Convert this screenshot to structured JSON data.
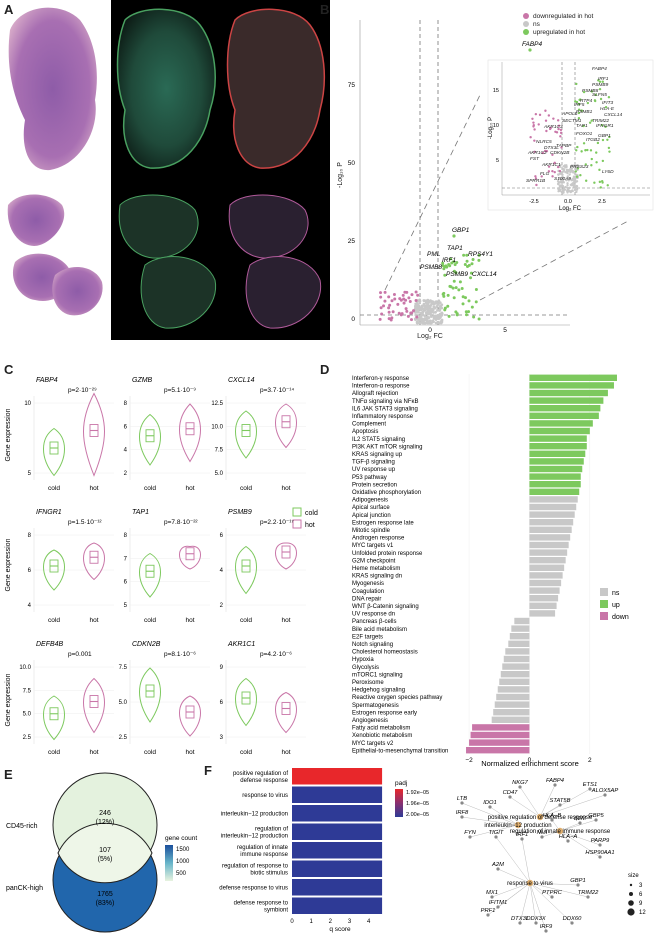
{
  "panel_labels": [
    "A",
    "B",
    "C",
    "D",
    "E",
    "F"
  ],
  "legend_b": {
    "down": "downregulated in hot",
    "ns": "ns",
    "up": "upregulated in hot"
  },
  "colors": {
    "up": "#7dc95e",
    "down": "#c976a8",
    "ns": "#c8c8c8",
    "cold": "#7dc95e",
    "hot": "#c976a8",
    "venn_top": "#e3f1dc",
    "venn_bottom": "#2166ac",
    "bar_red": "#e8272b",
    "bar_blue": "#2e3a96"
  },
  "panel_b": {
    "xlabel": "Log₂ FC",
    "ylabel": "-Log₁₀ P",
    "ticks_y": [
      "0",
      "25",
      "50",
      "75"
    ],
    "ticks_x": [
      "0",
      "5"
    ],
    "main_labels": [
      "FABP4",
      "GBP1",
      "TAP1",
      "PML",
      "IRF1",
      "RPS4Y1",
      "PSMB8",
      "PSMB9",
      "CXCL14"
    ],
    "inset_labels": [
      "FABP4",
      "IRF1",
      "PSMB9",
      "PSMB8",
      "SLFN5",
      "RTP4",
      "IRF5",
      "IFIT3",
      "HLA-E",
      "CXCL14",
      "TRIM22",
      "IFNGR1",
      "PSMB1",
      "APOL6",
      "AKR1C3",
      "SECTM1",
      "TAP1",
      "GBP1",
      "FOXO1",
      "ITGB2",
      "NLRC5",
      "DTX3L",
      "TAPBP",
      "CDKN2B",
      "FST",
      "AKR1C2",
      "AKR1C1",
      "PRSS23",
      "LY6D",
      "FLG",
      "SPRR1B",
      "S100A9"
    ],
    "inset_ticks_x": [
      "-2.5",
      "0.0",
      "2.5"
    ],
    "inset_ticks_y": [
      "5",
      "10",
      "15"
    ]
  },
  "panel_c": {
    "ylabel": "Gene expression",
    "legend": [
      {
        "name": "cold",
        "color": "#7dc95e"
      },
      {
        "name": "hot",
        "color": "#c976a8"
      }
    ],
    "genes": [
      {
        "name": "FABP4",
        "p": "p=2·10⁻²⁹",
        "ticks": [
          "5",
          "10"
        ]
      },
      {
        "name": "GZMB",
        "p": "p=5.1·10⁻⁹",
        "ticks": [
          "2",
          "4",
          "6",
          "8"
        ]
      },
      {
        "name": "CXCL14",
        "p": "p=3.7·10⁻¹⁴",
        "ticks": [
          "5.0",
          "7.5",
          "10.0",
          "12.5"
        ]
      },
      {
        "name": "IFNGR1",
        "p": "p=1.5·10⁻¹²",
        "ticks": [
          "4",
          "6",
          "8"
        ]
      },
      {
        "name": "TAP1",
        "p": "p=7.8·10⁻²²",
        "ticks": [
          "5",
          "6",
          "7",
          "8"
        ]
      },
      {
        "name": "PSMB9",
        "p": "p=2.2·10⁻¹⁷",
        "ticks": [
          "2",
          "4",
          "6"
        ]
      },
      {
        "name": "DEFB4B",
        "p": "p=0.001",
        "ticks": [
          "2.5",
          "5.0",
          "7.5",
          "10.0"
        ]
      },
      {
        "name": "CDKN2B",
        "p": "p=8.1·10⁻⁶",
        "ticks": [
          "2.5",
          "5.0",
          "7.5"
        ]
      },
      {
        "name": "AKR1C1",
        "p": "p=4.2·10⁻⁶",
        "ticks": [
          "3",
          "6",
          "9"
        ]
      }
    ],
    "xcats": [
      "cold",
      "hot"
    ]
  },
  "panel_e": {
    "top_label": "CD45-rich",
    "bottom_label": "panCK-high",
    "top_count": "246",
    "top_pct": "(12%)",
    "mid_count": "107",
    "mid_pct": "(5%)",
    "bottom_count": "1765",
    "bottom_pct": "(83%)",
    "legend_title": "gene count",
    "legend_ticks": [
      "1500",
      "1000",
      "500"
    ]
  },
  "panel_f": {
    "xlabel": "q score",
    "ticks_x": [
      "0",
      "1",
      "2",
      "3",
      "4"
    ],
    "legend_title": "padj",
    "legend_ticks": [
      "1.92e−05",
      "1.96e−05",
      "2.00e−05"
    ],
    "network_genes": [
      "NKG7",
      "FABP4",
      "ETS1",
      "CD47",
      "ALOX5AP",
      "LTB",
      "IDO1",
      "STAT5B",
      "IRF8",
      "HLA−B",
      "B2M",
      "GBP5",
      "FYN",
      "TIGIT",
      "IRF1",
      "NMI",
      "HLA−A",
      "PARP9",
      "HSP90AA1",
      "A2M",
      "GBP1",
      "MX1",
      "PTPRC",
      "TRIM22",
      "IFITM1",
      "PRF1",
      "DTX3L",
      "DDX3X",
      "DDX60",
      "IRF9"
    ],
    "network_terms": [
      "positive regulation of defense response",
      "interleukin−12 production",
      "regulation of innate immune response",
      "response to virus"
    ],
    "size_title": "size",
    "size_ticks": [
      "3",
      "6",
      "9",
      "12"
    ]
  },
  "chart_data": [
    {
      "type": "bar",
      "panel": "D",
      "xlabel": "Normalized enrichment score",
      "xticks": [
        "−2",
        "0",
        "2"
      ],
      "legend": [
        {
          "name": "ns",
          "color": "#c8c8c8"
        },
        {
          "name": "up",
          "color": "#7dc95e"
        },
        {
          "name": "down",
          "color": "#c976a8"
        }
      ],
      "categories": [
        "Interferon-γ response",
        "Interferon-α response",
        "Allograft rejection",
        "TNFα signaling via NFκB",
        "IL6 JAK STAT3 signaling",
        "Inflammatory response",
        "Complement",
        "Apoptosis",
        "IL2 STAT5 signaling",
        "PI3K AKT mTOR signaling",
        "KRAS signaling up",
        "TGF-β signaling",
        "UV response up",
        "P53 pathway",
        "Protein secretion",
        "Oxidative phosphorylation",
        "Adipogenesis",
        "Apical surface",
        "Apical junction",
        "Estrogen response late",
        "Mitotic spindle",
        "Androgen response",
        "MYC targets v1",
        "Unfolded protein response",
        "G2M checkpoint",
        "Heme metabolism",
        "KRAS signaling dn",
        "Myogenesis",
        "Coagulation",
        "DNA repair",
        "WNT β-Catenin signaling",
        "UV response dn",
        "Pancreas β-cells",
        "Bile acid metabolism",
        "E2F targets",
        "Notch signaling",
        "Cholesterol homeostasis",
        "Hypoxia",
        "Glycolysis",
        "mTORC1 signaling",
        "Peroxisome",
        "Hedgehog signaling",
        "Reactive oxygen species pathway",
        "Spermatogenesis",
        "Estrogen response early",
        "Angiogenesis",
        "Fatty acid metabolism",
        "Xenobiotic metabolism",
        "MYC targets v2",
        "Epithelial-to-mesenchymal transition"
      ],
      "values": [
        2.9,
        2.8,
        2.6,
        2.45,
        2.35,
        2.3,
        2.1,
        2.0,
        1.9,
        1.9,
        1.85,
        1.8,
        1.75,
        1.7,
        1.7,
        1.65,
        1.6,
        1.55,
        1.5,
        1.45,
        1.4,
        1.35,
        1.3,
        1.25,
        1.2,
        1.15,
        1.1,
        1.05,
        1.0,
        0.95,
        0.9,
        0.85,
        -0.5,
        -0.6,
        -0.65,
        -0.7,
        -0.8,
        -0.85,
        -0.9,
        -0.95,
        -1.0,
        -1.05,
        -1.1,
        -1.15,
        -1.2,
        -1.25,
        -1.9,
        -1.95,
        -2.0,
        -2.1
      ],
      "status": [
        "up",
        "up",
        "up",
        "up",
        "up",
        "up",
        "up",
        "up",
        "up",
        "up",
        "up",
        "up",
        "up",
        "up",
        "up",
        "up",
        "ns",
        "ns",
        "ns",
        "ns",
        "ns",
        "ns",
        "ns",
        "ns",
        "ns",
        "ns",
        "ns",
        "ns",
        "ns",
        "ns",
        "ns",
        "ns",
        "ns",
        "ns",
        "ns",
        "ns",
        "ns",
        "ns",
        "ns",
        "ns",
        "ns",
        "ns",
        "ns",
        "ns",
        "ns",
        "ns",
        "down",
        "down",
        "down",
        "down"
      ],
      "xlim": [
        -2.3,
        3.0
      ]
    },
    {
      "type": "bar",
      "panel": "F",
      "xlabel": "q score",
      "categories": [
        "positive regulation of defense response",
        "response to virus",
        "interleukin−12 production",
        "regulation of interleukin−12 production",
        "regulation of innate immune response",
        "regulation of response to biotic stimulus",
        "defense response to virus",
        "defense response to symbiont"
      ],
      "values": [
        4.7,
        4.7,
        4.7,
        4.7,
        4.7,
        4.7,
        4.7,
        4.7
      ],
      "padj": [
        "1.92e-05",
        "2.00e-05",
        "2.00e-05",
        "2.00e-05",
        "2.00e-05",
        "2.00e-05",
        "2.00e-05",
        "2.00e-05"
      ],
      "xlim": [
        0,
        4.8
      ]
    }
  ]
}
